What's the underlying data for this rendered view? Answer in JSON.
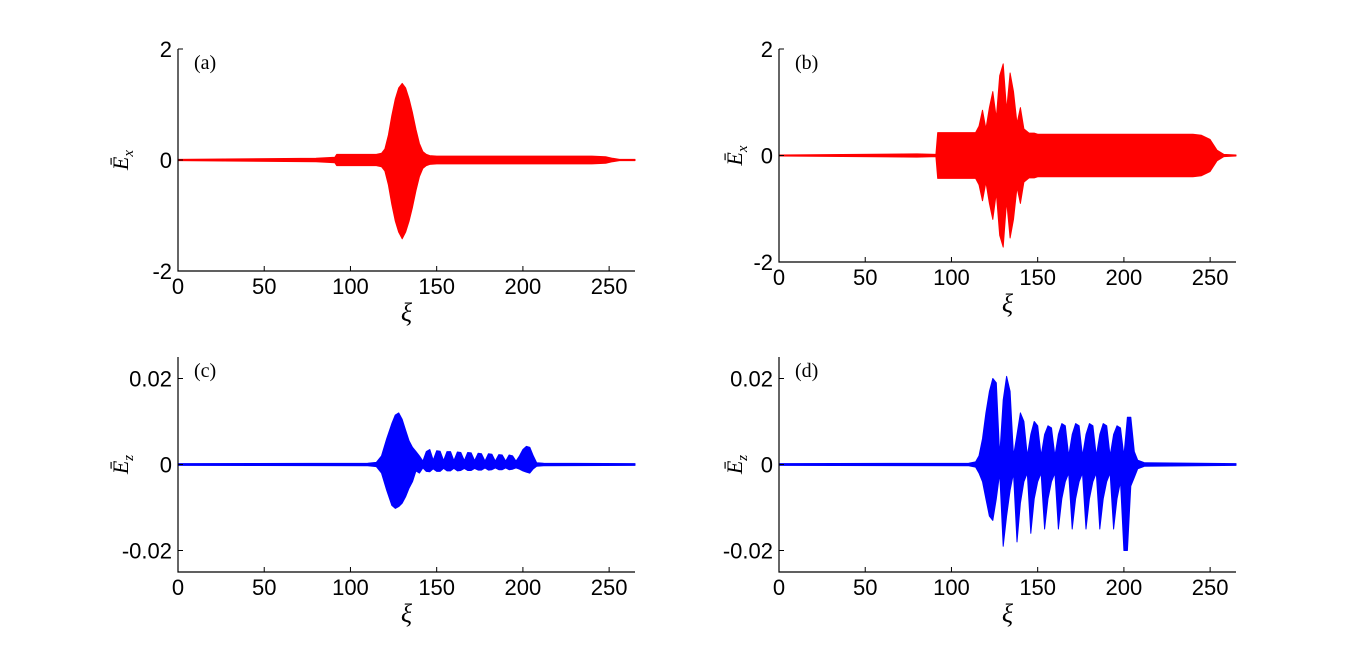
{
  "chart_data": [
    {
      "type": "area",
      "panel_label": "(a)",
      "ylabel": "Ē",
      "ylabel_sub": "x",
      "xlabel": "ξ",
      "xlim": [
        0,
        265
      ],
      "ylim": [
        -2,
        2
      ],
      "xticks": [
        "0",
        "50",
        "100",
        "150",
        "200",
        "250"
      ],
      "yticks": [
        "2",
        "0",
        "-2"
      ],
      "color": "#ff0000",
      "series": [
        {
          "x": [
            0,
            80,
            91,
            92,
            115,
            118,
            120,
            122,
            124,
            126,
            128,
            130,
            132,
            134,
            136,
            138,
            140,
            142,
            144,
            146,
            150,
            200,
            240,
            248,
            252,
            256,
            265
          ],
          "upper": [
            0.01,
            0.03,
            0.05,
            0.1,
            0.1,
            0.12,
            0.2,
            0.45,
            0.8,
            1.1,
            1.3,
            1.38,
            1.3,
            1.1,
            0.85,
            0.55,
            0.3,
            0.15,
            0.1,
            0.08,
            0.07,
            0.07,
            0.07,
            0.06,
            0.03,
            0.01,
            0.01
          ],
          "lower": [
            -0.01,
            -0.03,
            -0.05,
            -0.1,
            -0.1,
            -0.12,
            -0.2,
            -0.45,
            -0.8,
            -1.1,
            -1.3,
            -1.42,
            -1.3,
            -1.1,
            -0.85,
            -0.55,
            -0.3,
            -0.15,
            -0.1,
            -0.08,
            -0.07,
            -0.07,
            -0.07,
            -0.06,
            -0.03,
            -0.01,
            -0.01
          ]
        }
      ]
    },
    {
      "type": "area",
      "panel_label": "(b)",
      "ylabel": "Ē",
      "ylabel_sub": "x",
      "xlabel": "ξ",
      "xlim": [
        0,
        265
      ],
      "ylim": [
        -2,
        2
      ],
      "xticks": [
        "0",
        "50",
        "100",
        "150",
        "200",
        "250"
      ],
      "yticks": [
        "2",
        "0",
        "-2"
      ],
      "color": "#ff0000",
      "series": [
        {
          "x": [
            0,
            80,
            91,
            92,
            114,
            116,
            118,
            120,
            122,
            124,
            126,
            128,
            130,
            132,
            134,
            136,
            138,
            140,
            142,
            145,
            148,
            150,
            200,
            240,
            245,
            250,
            254,
            258,
            265
          ],
          "upper": [
            0.01,
            0.03,
            0.02,
            0.43,
            0.43,
            0.55,
            0.85,
            0.5,
            0.9,
            1.2,
            0.7,
            1.5,
            1.72,
            0.85,
            1.55,
            1.2,
            0.6,
            0.9,
            0.5,
            0.42,
            0.42,
            0.4,
            0.4,
            0.4,
            0.38,
            0.3,
            0.1,
            0.02,
            0.01
          ],
          "lower": [
            -0.01,
            -0.03,
            -0.02,
            -0.43,
            -0.43,
            -0.55,
            -0.85,
            -0.5,
            -0.9,
            -1.2,
            -0.7,
            -1.5,
            -1.72,
            -0.85,
            -1.55,
            -1.2,
            -0.6,
            -0.9,
            -0.5,
            -0.42,
            -0.42,
            -0.4,
            -0.4,
            -0.4,
            -0.38,
            -0.3,
            -0.1,
            -0.02,
            -0.01
          ]
        }
      ]
    },
    {
      "type": "area",
      "panel_label": "(c)",
      "ylabel": "Ē",
      "ylabel_sub": "z",
      "xlabel": "ξ",
      "xlim": [
        0,
        265
      ],
      "ylim": [
        -0.025,
        0.025
      ],
      "xticks": [
        "0",
        "50",
        "100",
        "150",
        "200",
        "250"
      ],
      "yticks": [
        "0.02",
        "0",
        "-0.02"
      ],
      "color": "#0000ff",
      "series": [
        {
          "x": [
            0,
            110,
            115,
            118,
            121,
            124,
            126,
            128,
            130,
            132,
            134,
            136,
            138,
            140,
            142,
            144,
            146,
            148,
            150,
            152,
            154,
            156,
            158,
            160,
            162,
            164,
            166,
            168,
            170,
            172,
            174,
            176,
            178,
            180,
            182,
            184,
            186,
            188,
            190,
            192,
            194,
            196,
            198,
            200,
            202,
            204,
            206,
            208,
            212,
            265
          ],
          "upper": [
            0.0002,
            0.0003,
            0.0005,
            0.002,
            0.006,
            0.0095,
            0.0115,
            0.012,
            0.0105,
            0.008,
            0.0055,
            0.004,
            0.003,
            0.002,
            0.0008,
            0.003,
            0.0035,
            0.001,
            0.0032,
            0.0031,
            0.0009,
            0.003,
            0.003,
            0.0009,
            0.0029,
            0.0028,
            0.0009,
            0.0028,
            0.0027,
            0.0009,
            0.0026,
            0.0025,
            0.0008,
            0.0025,
            0.0024,
            0.0008,
            0.0023,
            0.0022,
            0.0008,
            0.0022,
            0.002,
            0.0008,
            0.002,
            0.0035,
            0.0042,
            0.004,
            0.002,
            0.0004,
            0.0003,
            0.0002
          ],
          "lower": [
            -0.0002,
            -0.0003,
            -0.0005,
            -0.002,
            -0.006,
            -0.0095,
            -0.0102,
            -0.0098,
            -0.009,
            -0.0075,
            -0.0055,
            -0.004,
            -0.0015,
            -0.002,
            -0.0008,
            -0.0016,
            -0.0017,
            -0.001,
            -0.0016,
            -0.0016,
            -0.0009,
            -0.0015,
            -0.0015,
            -0.0009,
            -0.0015,
            -0.0014,
            -0.0009,
            -0.0014,
            -0.0014,
            -0.0009,
            -0.0013,
            -0.0013,
            -0.0008,
            -0.0013,
            -0.0012,
            -0.0008,
            -0.0012,
            -0.0012,
            -0.0008,
            -0.0012,
            -0.0011,
            -0.0008,
            -0.0011,
            -0.0015,
            -0.0018,
            -0.002,
            -0.001,
            -0.0004,
            -0.0003,
            -0.0002
          ]
        }
      ]
    },
    {
      "type": "area",
      "panel_label": "(d)",
      "ylabel": "Ē",
      "ylabel_sub": "z",
      "xlabel": "ξ",
      "xlim": [
        0,
        265
      ],
      "ylim": [
        -0.025,
        0.025
      ],
      "xticks": [
        "0",
        "50",
        "100",
        "150",
        "200",
        "250"
      ],
      "yticks": [
        "0.02",
        "0",
        "-0.02"
      ],
      "color": "#0000ff",
      "series": [
        {
          "x": [
            0,
            110,
            114,
            116,
            118,
            120,
            122,
            124,
            126,
            128,
            130,
            132,
            134,
            136,
            138,
            140,
            142,
            144,
            146,
            148,
            150,
            152,
            154,
            156,
            158,
            160,
            162,
            164,
            166,
            168,
            170,
            172,
            174,
            176,
            178,
            180,
            182,
            184,
            186,
            188,
            190,
            192,
            194,
            196,
            198,
            200,
            202,
            204,
            206,
            208,
            212,
            265
          ],
          "upper": [
            0.0002,
            0.0003,
            0.0006,
            0.002,
            0.006,
            0.012,
            0.017,
            0.02,
            0.019,
            0.002,
            0.015,
            0.0205,
            0.017,
            0.002,
            0.007,
            0.012,
            0.01,
            0.002,
            0.007,
            0.01,
            0.009,
            0.002,
            0.007,
            0.009,
            0.0085,
            0.002,
            0.007,
            0.0095,
            0.009,
            0.002,
            0.007,
            0.0095,
            0.009,
            0.002,
            0.007,
            0.0095,
            0.009,
            0.002,
            0.007,
            0.0095,
            0.009,
            0.002,
            0.007,
            0.009,
            0.0085,
            0.002,
            0.011,
            0.011,
            0.003,
            0.001,
            0.0004,
            0.0002
          ],
          "lower": [
            -0.0002,
            -0.0003,
            -0.0006,
            -0.002,
            -0.004,
            -0.008,
            -0.012,
            -0.013,
            -0.008,
            -0.002,
            -0.019,
            -0.012,
            -0.006,
            -0.002,
            -0.018,
            -0.009,
            -0.004,
            -0.002,
            -0.016,
            -0.008,
            -0.004,
            -0.002,
            -0.015,
            -0.008,
            -0.004,
            -0.002,
            -0.015,
            -0.008,
            -0.004,
            -0.002,
            -0.015,
            -0.008,
            -0.004,
            -0.002,
            -0.015,
            -0.008,
            -0.004,
            -0.002,
            -0.015,
            -0.008,
            -0.004,
            -0.002,
            -0.015,
            -0.008,
            -0.004,
            -0.02,
            -0.02,
            -0.005,
            -0.003,
            -0.001,
            -0.0004,
            -0.0002
          ]
        }
      ]
    }
  ]
}
